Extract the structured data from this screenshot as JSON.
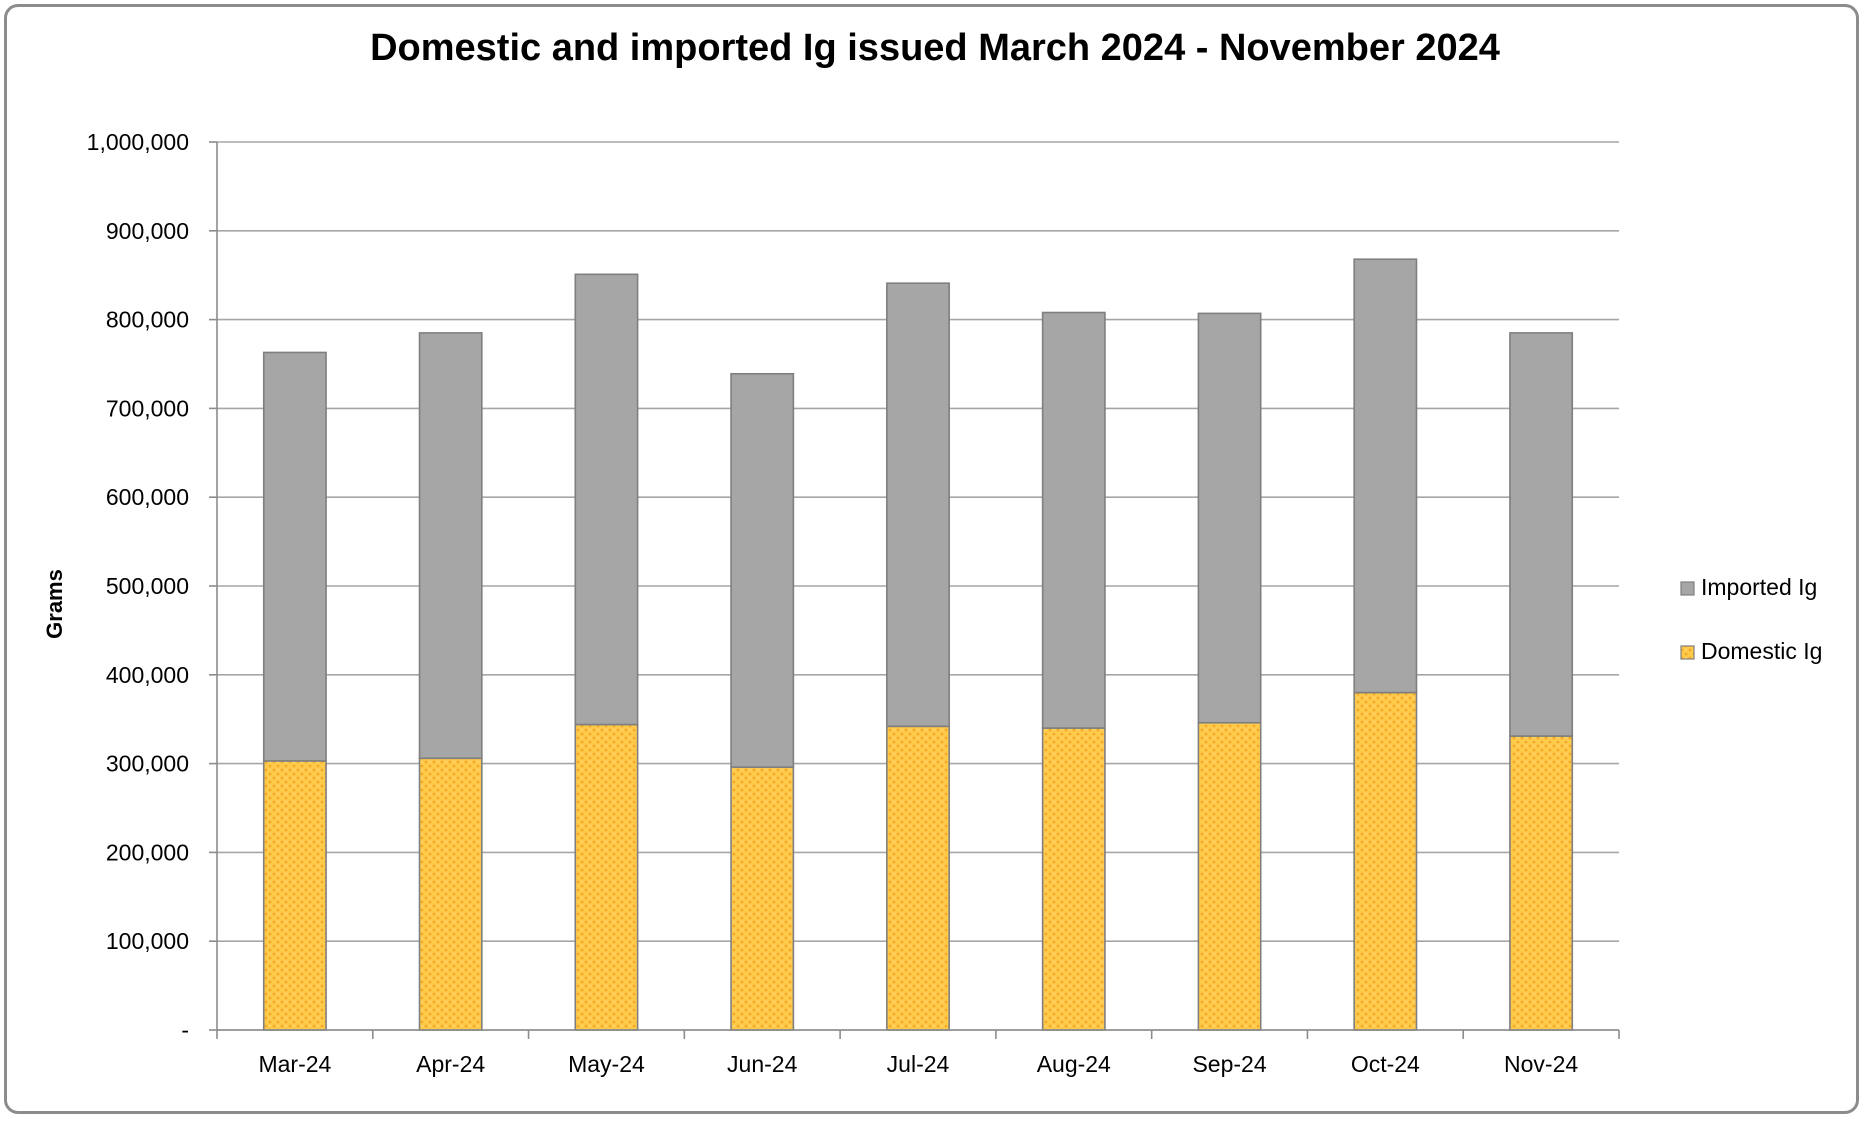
{
  "chart_data": {
    "type": "bar",
    "stacked": true,
    "title": "Domestic and imported Ig issued March 2024 - November 2024",
    "xlabel": "",
    "ylabel": "Grams",
    "categories": [
      "Mar-24",
      "Apr-24",
      "May-24",
      "Jun-24",
      "Jul-24",
      "Aug-24",
      "Sep-24",
      "Oct-24",
      "Nov-24"
    ],
    "y_ticks": [
      "-",
      "100,000",
      "200,000",
      "300,000",
      "400,000",
      "500,000",
      "600,000",
      "700,000",
      "800,000",
      "900,000",
      "1,000,000"
    ],
    "ylim": [
      0,
      1000000
    ],
    "grid": true,
    "legend_position": "right",
    "series": [
      {
        "name": "Domestic Ig",
        "color": "#ffc94a",
        "pattern": "dotted",
        "values": [
          303000,
          306000,
          344000,
          296000,
          342000,
          340000,
          346000,
          380000,
          331000
        ]
      },
      {
        "name": "Imported Ig",
        "color": "#a6a6a6",
        "values": [
          460000,
          479000,
          507000,
          443000,
          499000,
          468000,
          461000,
          488000,
          454000
        ]
      }
    ],
    "legend_order": [
      "Imported Ig",
      "Domestic Ig"
    ]
  }
}
